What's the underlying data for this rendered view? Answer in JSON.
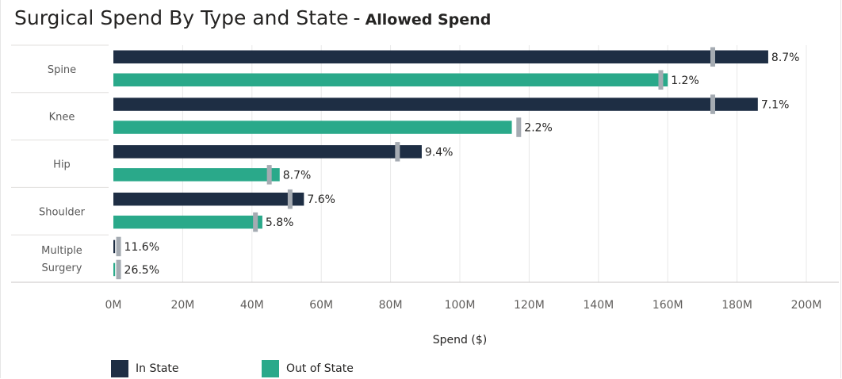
{
  "title": {
    "main": "Surgical Spend By Type and State",
    "separator": "-",
    "sub": "Allowed Spend"
  },
  "colors": {
    "in_state": "#1e2e44",
    "out_of_state": "#2aa98a",
    "marker": "#a5abb2"
  },
  "chart_data": {
    "type": "bar",
    "orientation": "horizontal",
    "title": "Surgical Spend By Type and State - Allowed Spend",
    "xlabel": "Spend ($)",
    "ylabel": "",
    "xlim": [
      0,
      200
    ],
    "x_ticks": [
      {
        "value": 0,
        "label": "0M"
      },
      {
        "value": 20,
        "label": "20M"
      },
      {
        "value": 40,
        "label": "40M"
      },
      {
        "value": 60,
        "label": "60M"
      },
      {
        "value": 80,
        "label": "80M"
      },
      {
        "value": 100,
        "label": "100M"
      },
      {
        "value": 120,
        "label": "120M"
      },
      {
        "value": 140,
        "label": "140M"
      },
      {
        "value": 160,
        "label": "160M"
      },
      {
        "value": 180,
        "label": "180M"
      },
      {
        "value": 200,
        "label": "200M"
      }
    ],
    "categories": [
      {
        "key": "spine",
        "lines": [
          "Spine"
        ]
      },
      {
        "key": "knee",
        "lines": [
          "Knee"
        ]
      },
      {
        "key": "hip",
        "lines": [
          "Hip"
        ]
      },
      {
        "key": "shoulder",
        "lines": [
          "Shoulder"
        ]
      },
      {
        "key": "multiple-surgery",
        "lines": [
          "Multiple",
          "Surgery"
        ]
      }
    ],
    "series": [
      {
        "name": "In State",
        "key": "in-state",
        "values": [
          189,
          186,
          89,
          55,
          0.5
        ],
        "markers": [
          173,
          173,
          82,
          51,
          1.5
        ],
        "labels": [
          "8.7%",
          "7.1%",
          "9.4%",
          "7.6%",
          "11.6%"
        ]
      },
      {
        "name": "Out of State",
        "key": "out-of-state",
        "values": [
          160,
          115,
          48,
          43,
          0.5
        ],
        "markers": [
          158,
          117,
          45,
          41,
          1.5
        ],
        "labels": [
          "1.2%",
          "2.2%",
          "8.7%",
          "5.8%",
          "26.5%"
        ]
      }
    ],
    "legend": {
      "position": "bottom-left",
      "items": [
        {
          "name": "In State",
          "series": "in-state"
        },
        {
          "name": "Out of State",
          "series": "out-of-state"
        }
      ]
    },
    "grid": {
      "vertical": true
    }
  }
}
